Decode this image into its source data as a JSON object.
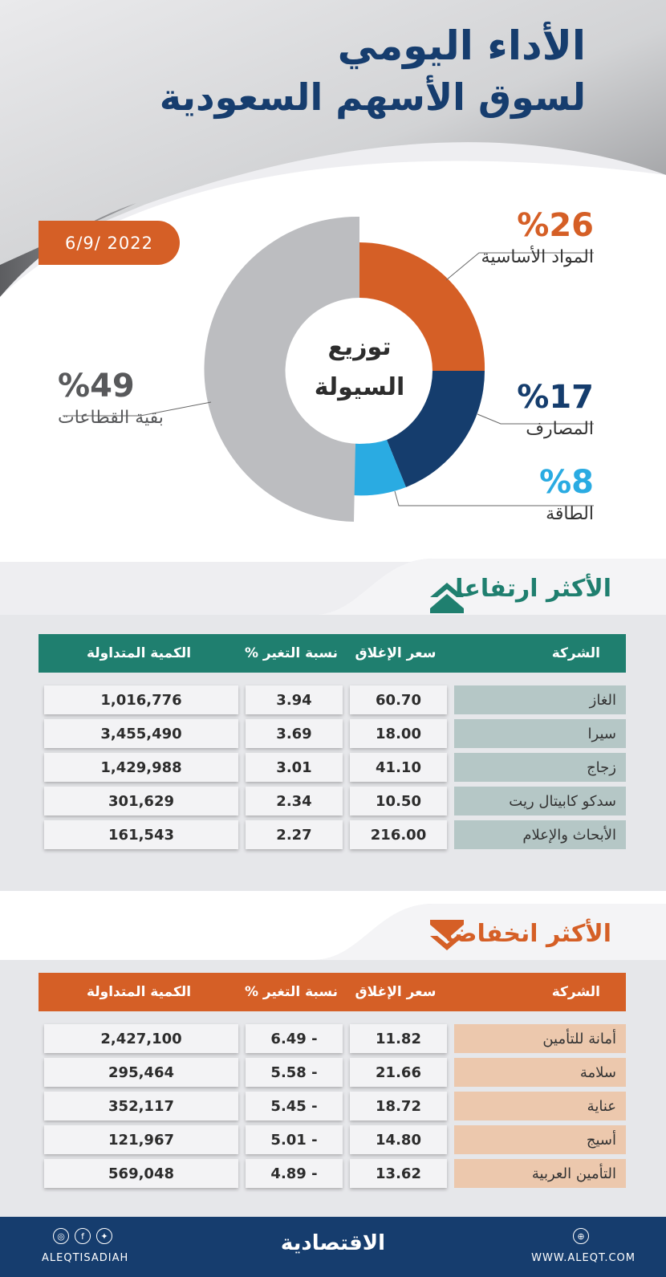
{
  "header": {
    "title_line1": "الأداء اليومي",
    "title_line2": "لسوق الأسهم السعودية",
    "date": "6/9/ 2022"
  },
  "liquidity": {
    "center_line1": "توزيع",
    "center_line2": "السيولة",
    "segments": [
      {
        "label": "المواد الأساسية",
        "pct_text": "%26",
        "value": 26,
        "color": "#d55f26"
      },
      {
        "label": "المصارف",
        "pct_text": "%17",
        "value": 17,
        "color": "#153d6d"
      },
      {
        "label": "الطاقة",
        "pct_text": "%8",
        "value": 8,
        "color": "#2aabe2"
      },
      {
        "label": "بقية القطاعات",
        "pct_text": "%49",
        "value": 49,
        "color": "#bcbdc0"
      }
    ]
  },
  "gainers": {
    "title": "الأكثر ارتفاعا",
    "headers": [
      "الشركة",
      "سعر الإغلاق",
      "نسبة التغير %",
      "الكمية المتداولة"
    ],
    "rows": [
      [
        "الغاز",
        "60.70",
        "3.94",
        "1,016,776"
      ],
      [
        "سيرا",
        "18.00",
        "3.69",
        "3,455,490"
      ],
      [
        "زجاج",
        "41.10",
        "3.01",
        "1,429,988"
      ],
      [
        "سدكو كابيتال ريت",
        "10.50",
        "2.34",
        "301,629"
      ],
      [
        "الأبحاث والإعلام",
        "216.00",
        "2.27",
        "161,543"
      ]
    ],
    "header_color": "#1f7f6f",
    "name_cell_color": "#b5c7c6"
  },
  "losers": {
    "title": "الأكثر انخفاضا",
    "headers": [
      "الشركة",
      "سعر الإغلاق",
      "نسبة التغير %",
      "الكمية المتداولة"
    ],
    "rows": [
      [
        "أمانة للتأمين",
        "11.82",
        "- 6.49",
        "2,427,100"
      ],
      [
        "سلامة",
        "21.66",
        "- 5.58",
        "295,464"
      ],
      [
        "عناية",
        "18.72",
        "- 5.45",
        "352,117"
      ],
      [
        "أسيج",
        "14.80",
        "- 5.01",
        "121,967"
      ],
      [
        "التأمين العربية",
        "13.62",
        "- 4.89",
        "569,048"
      ]
    ],
    "header_color": "#d55f26",
    "name_cell_color": "#ecc8ad"
  },
  "footer": {
    "brand": "الاقتصادية",
    "handle": "ALEQTISADIAH",
    "website": "WWW.ALEQT.COM",
    "social_icons": [
      "instagram-icon",
      "facebook-icon",
      "twitter-icon"
    ],
    "web_icon": "globe-icon"
  }
}
